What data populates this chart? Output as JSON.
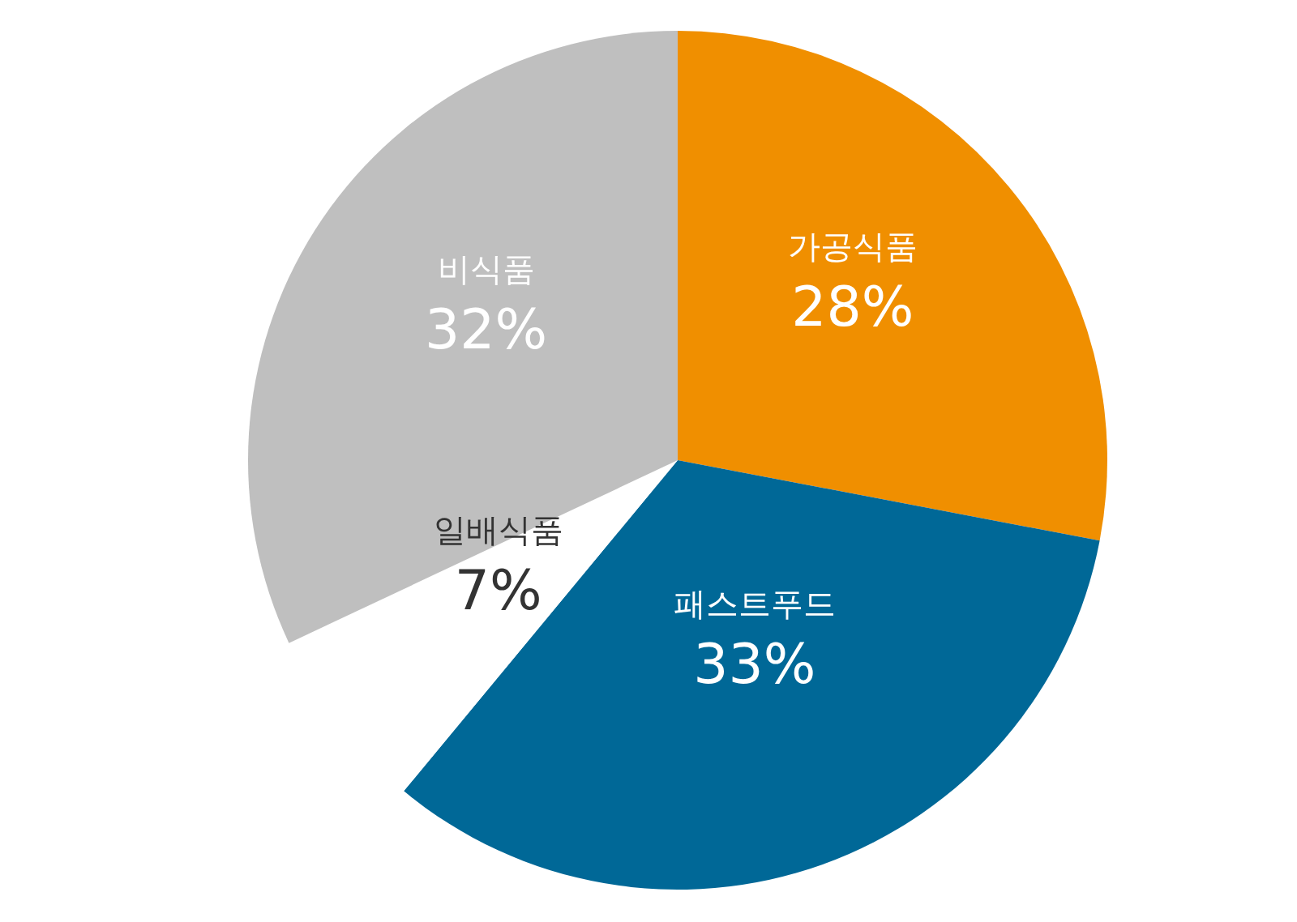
{
  "chart_data": {
    "type": "pie",
    "categories": [
      "가공식품",
      "패스트푸드",
      "일배식품",
      "비식품"
    ],
    "values": [
      28,
      33,
      7,
      32
    ],
    "value_labels": [
      "28%",
      "33%",
      "7%",
      "32%"
    ],
    "colors": [
      "#f08f00",
      "#006897",
      "#ffffff",
      "#bfbfbf"
    ]
  }
}
